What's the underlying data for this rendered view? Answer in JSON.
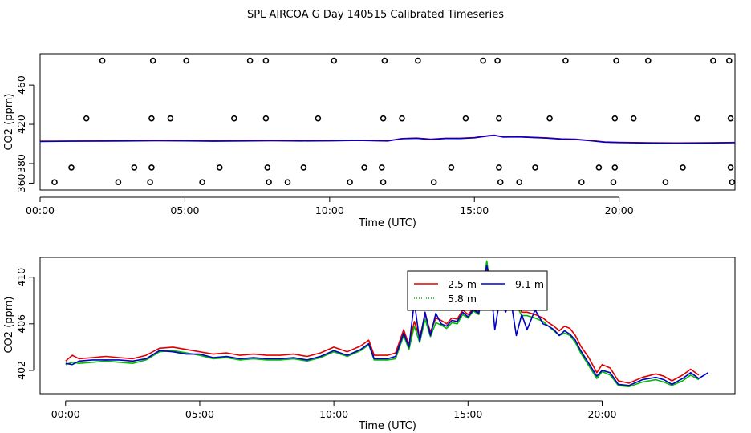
{
  "figure_title": "SPL AIRCOA G  Day 140515  Calibrated Timeseries",
  "colors": {
    "series_2_5m": "#e00000",
    "series_5_8m": "#00bb00",
    "series_9_1m": "#0000cc",
    "markers": "#000000",
    "axes": "#000000"
  },
  "chart_data": [
    {
      "type": "line",
      "panel": "top",
      "title": "",
      "xlabel": "Time (UTC)",
      "ylabel": "CO2 (ppm)",
      "xlim": [
        0,
        24
      ],
      "ylim": [
        353,
        492
      ],
      "x_ticks": [
        0,
        5,
        10,
        15,
        20
      ],
      "x_tick_labels": [
        "00:00",
        "05:00",
        "10:00",
        "15:00",
        "20:00"
      ],
      "y_ticks": [
        360,
        380,
        420,
        460
      ],
      "y_tick_labels": [
        "360",
        "380",
        "420",
        "460"
      ],
      "series": [
        {
          "name": "2.5 m",
          "color_key": "series_2_5m",
          "x": [
            0.0,
            1,
            2,
            3,
            4,
            5,
            6,
            7,
            8,
            9,
            10,
            11,
            12,
            12.5,
            13,
            13.5,
            14,
            14.5,
            15,
            15.5,
            15.7,
            16,
            16.5,
            17,
            17.5,
            18,
            18.5,
            19,
            19.5,
            20,
            21,
            22,
            23,
            24.0
          ],
          "y": [
            402.8,
            402.9,
            403.0,
            403.1,
            403.5,
            403.3,
            403.0,
            403.2,
            403.5,
            403.2,
            403.4,
            403.8,
            403.2,
            405.5,
            406.0,
            404.8,
            405.8,
            405.8,
            406.5,
            408.5,
            408.9,
            407.2,
            407.4,
            406.8,
            406.2,
            405.2,
            404.8,
            403.5,
            402.0,
            401.6,
            401.2,
            401.0,
            401.2,
            401.5
          ]
        },
        {
          "name": "9.1 m",
          "color_key": "series_9_1m",
          "x": [
            0.0,
            1,
            2,
            3,
            4,
            5,
            6,
            7,
            8,
            9,
            10,
            11,
            12,
            12.5,
            13,
            13.5,
            14,
            14.5,
            15,
            15.5,
            15.7,
            16,
            16.5,
            17,
            17.5,
            18,
            18.5,
            19,
            19.5,
            20,
            21,
            22,
            23,
            24.0
          ],
          "y": [
            402.5,
            402.8,
            402.9,
            403.0,
            403.3,
            403.1,
            402.8,
            403.0,
            403.3,
            403.0,
            403.2,
            403.6,
            403.0,
            405.3,
            405.8,
            404.6,
            405.6,
            405.6,
            406.3,
            408.3,
            408.7,
            407.0,
            407.2,
            406.6,
            406.0,
            405.0,
            404.6,
            403.3,
            401.8,
            401.4,
            401.0,
            400.8,
            401.0,
            401.3
          ]
        }
      ],
      "scatter": {
        "name": "open circles",
        "x": [
          0.5,
          1.08,
          2.15,
          2.7,
          3.25,
          3.8,
          3.85,
          3.9,
          5.05,
          5.6,
          6.2,
          7.25,
          7.8,
          7.85,
          7.9,
          8.55,
          9.1,
          10.15,
          10.7,
          11.2,
          11.8,
          11.85,
          11.9,
          13.05,
          13.6,
          14.2,
          15.3,
          15.8,
          15.85,
          15.9,
          16.55,
          17.1,
          18.15,
          18.7,
          19.3,
          19.8,
          19.85,
          19.9,
          21.0,
          21.6,
          22.2,
          23.25,
          23.8,
          23.85,
          23.9,
          1.6,
          3.85,
          4.5,
          6.7,
          7.8,
          9.6,
          11.85,
          12.5,
          14.7,
          15.85,
          17.6,
          19.85,
          20.5,
          22.7,
          23.85
        ],
        "y": [
          361,
          376,
          485,
          361,
          376,
          361,
          376,
          485,
          485,
          361,
          376,
          485,
          485,
          376,
          361,
          361,
          376,
          485,
          361,
          376,
          376,
          361,
          485,
          485,
          361,
          376,
          485,
          485,
          376,
          361,
          361,
          376,
          485,
          361,
          376,
          361,
          376,
          485,
          485,
          361,
          376,
          485,
          485,
          376,
          361,
          426,
          426,
          426,
          426,
          426,
          426,
          426,
          426,
          426,
          426,
          426,
          426,
          426,
          426,
          426
        ]
      }
    },
    {
      "type": "line",
      "panel": "bottom",
      "title": "",
      "xlabel": "Time (UTC)",
      "ylabel": "CO2 (ppm)",
      "xlim": [
        -0.95,
        24.95
      ],
      "ylim": [
        400.0,
        411.7
      ],
      "x_ticks": [
        0,
        5,
        10,
        15,
        20
      ],
      "x_tick_labels": [
        "00:00",
        "05:00",
        "10:00",
        "15:00",
        "20:00"
      ],
      "y_ticks": [
        402,
        406,
        410
      ],
      "y_tick_labels": [
        "402",
        "406",
        "410"
      ],
      "legend": {
        "placement": "top-center",
        "entries": [
          {
            "label": "2.5 m",
            "color_key": "series_2_5m",
            "dash": "solid"
          },
          {
            "label": "9.1 m",
            "color_key": "series_9_1m",
            "dash": "solid"
          },
          {
            "label": "5.8 m",
            "color_key": "series_5_8m",
            "dash": "dotted"
          }
        ]
      },
      "series": [
        {
          "name": "2.5 m",
          "color_key": "series_2_5m",
          "x": [
            0.0,
            0.25,
            0.5,
            1.0,
            1.5,
            2.0,
            2.5,
            3.0,
            3.5,
            4.0,
            4.5,
            5.0,
            5.5,
            6.0,
            6.5,
            7.0,
            7.5,
            8.0,
            8.5,
            9.0,
            9.5,
            10.0,
            10.5,
            11.0,
            11.3,
            11.5,
            12.0,
            12.3,
            12.6,
            12.8,
            13.0,
            13.2,
            13.4,
            13.6,
            13.8,
            14.0,
            14.2,
            14.4,
            14.6,
            14.8,
            15.0,
            15.2,
            15.4,
            15.55,
            15.7,
            15.85,
            16.0,
            16.2,
            16.4,
            16.6,
            16.8,
            17.0,
            17.2,
            17.5,
            17.8,
            18.0,
            18.2,
            18.4,
            18.6,
            18.8,
            19.0,
            19.2,
            19.5,
            19.8,
            20.0,
            20.3,
            20.6,
            21.0,
            21.5,
            22.0,
            22.3,
            22.6,
            23.0,
            23.3,
            23.6
          ],
          "y": [
            402.8,
            403.3,
            403.0,
            403.1,
            403.2,
            403.1,
            403.0,
            403.3,
            403.9,
            404.0,
            403.8,
            403.6,
            403.4,
            403.5,
            403.3,
            403.4,
            403.3,
            403.3,
            403.4,
            403.2,
            403.5,
            404.0,
            403.6,
            404.1,
            404.6,
            403.3,
            403.3,
            403.5,
            405.5,
            404.2,
            406.2,
            404.8,
            406.8,
            405.3,
            406.5,
            406.3,
            406.0,
            406.5,
            406.4,
            407.2,
            406.8,
            407.3,
            407.0,
            408.8,
            410.6,
            408.5,
            407.6,
            408.4,
            408.3,
            407.5,
            407.9,
            407.0,
            407.0,
            406.8,
            406.5,
            406.1,
            405.8,
            405.4,
            405.8,
            405.6,
            405.0,
            404.1,
            403.1,
            401.8,
            402.5,
            402.2,
            401.1,
            400.9,
            401.4,
            401.7,
            401.5,
            401.1,
            401.6,
            402.1,
            401.6
          ]
        },
        {
          "name": "5.8 m",
          "color_key": "series_5_8m",
          "x": [
            0.0,
            0.25,
            0.5,
            1.0,
            1.5,
            2.0,
            2.5,
            3.0,
            3.5,
            4.0,
            4.5,
            5.0,
            5.5,
            6.0,
            6.5,
            7.0,
            7.5,
            8.0,
            8.5,
            9.0,
            9.5,
            10.0,
            10.5,
            11.0,
            11.3,
            11.5,
            12.0,
            12.3,
            12.6,
            12.8,
            13.0,
            13.2,
            13.4,
            13.6,
            13.8,
            14.0,
            14.2,
            14.4,
            14.6,
            14.8,
            15.0,
            15.2,
            15.4,
            15.55,
            15.7,
            15.85,
            16.0,
            16.2,
            16.4,
            16.6,
            16.8,
            17.0,
            17.2,
            17.5,
            17.8,
            18.0,
            18.2,
            18.4,
            18.6,
            18.8,
            19.0,
            19.2,
            19.5,
            19.8,
            20.0,
            20.3,
            20.6,
            21.0,
            21.5,
            22.0,
            22.3,
            22.6,
            23.0,
            23.3,
            23.6
          ],
          "y": [
            402.5,
            402.7,
            402.6,
            402.7,
            402.8,
            402.7,
            402.6,
            402.9,
            403.6,
            403.7,
            403.5,
            403.3,
            403.0,
            403.1,
            402.9,
            403.0,
            402.9,
            402.9,
            403.0,
            402.8,
            403.1,
            403.6,
            403.2,
            403.7,
            404.2,
            402.9,
            402.9,
            403.0,
            405.0,
            403.8,
            405.8,
            404.4,
            406.4,
            404.9,
            406.1,
            405.9,
            405.6,
            406.1,
            406.0,
            406.8,
            406.5,
            407.1,
            406.8,
            409.0,
            411.4,
            408.8,
            407.4,
            408.2,
            408.0,
            407.2,
            407.6,
            406.7,
            406.7,
            406.5,
            406.2,
            405.8,
            405.4,
            405.0,
            405.2,
            405.0,
            404.4,
            403.5,
            402.4,
            401.3,
            401.9,
            401.6,
            400.7,
            400.6,
            401.0,
            401.2,
            401.0,
            400.7,
            401.1,
            401.6,
            401.2
          ]
        },
        {
          "name": "9.1 m",
          "color_key": "series_9_1m",
          "x": [
            0.0,
            0.25,
            0.5,
            1.0,
            1.5,
            2.0,
            2.5,
            3.0,
            3.5,
            4.0,
            4.5,
            5.0,
            5.5,
            6.0,
            6.5,
            7.0,
            7.5,
            8.0,
            8.5,
            9.0,
            9.5,
            10.0,
            10.5,
            11.0,
            11.3,
            11.5,
            12.0,
            12.3,
            12.6,
            12.8,
            13.0,
            13.2,
            13.4,
            13.6,
            13.8,
            14.0,
            14.2,
            14.4,
            14.6,
            14.8,
            15.0,
            15.2,
            15.4,
            15.55,
            15.7,
            15.85,
            16.0,
            16.2,
            16.4,
            16.6,
            16.8,
            17.0,
            17.2,
            17.5,
            17.8,
            18.0,
            18.2,
            18.4,
            18.6,
            18.8,
            19.0,
            19.2,
            19.5,
            19.8,
            20.0,
            20.3,
            20.6,
            21.0,
            21.5,
            22.0,
            22.3,
            22.6,
            23.0,
            23.3,
            23.6,
            23.95
          ],
          "y": [
            402.6,
            402.5,
            402.8,
            402.9,
            402.9,
            402.9,
            402.8,
            403.0,
            403.7,
            403.6,
            403.4,
            403.4,
            403.1,
            403.2,
            403.0,
            403.1,
            403.0,
            403.0,
            403.1,
            402.9,
            403.2,
            403.7,
            403.3,
            403.8,
            404.3,
            403.0,
            403.0,
            403.2,
            405.2,
            404.0,
            407.9,
            404.5,
            407.0,
            405.0,
            406.9,
            406.0,
            405.8,
            406.3,
            406.2,
            407.0,
            406.6,
            407.2,
            406.9,
            409.3,
            411.0,
            409.2,
            405.5,
            408.3,
            407.0,
            408.0,
            405.0,
            406.8,
            405.5,
            407.2,
            406.0,
            405.8,
            405.5,
            405.0,
            405.4,
            405.1,
            404.6,
            403.7,
            402.6,
            401.5,
            402.0,
            401.8,
            400.8,
            400.7,
            401.2,
            401.4,
            401.2,
            400.8,
            401.3,
            401.8,
            401.3,
            401.8
          ]
        }
      ]
    }
  ]
}
